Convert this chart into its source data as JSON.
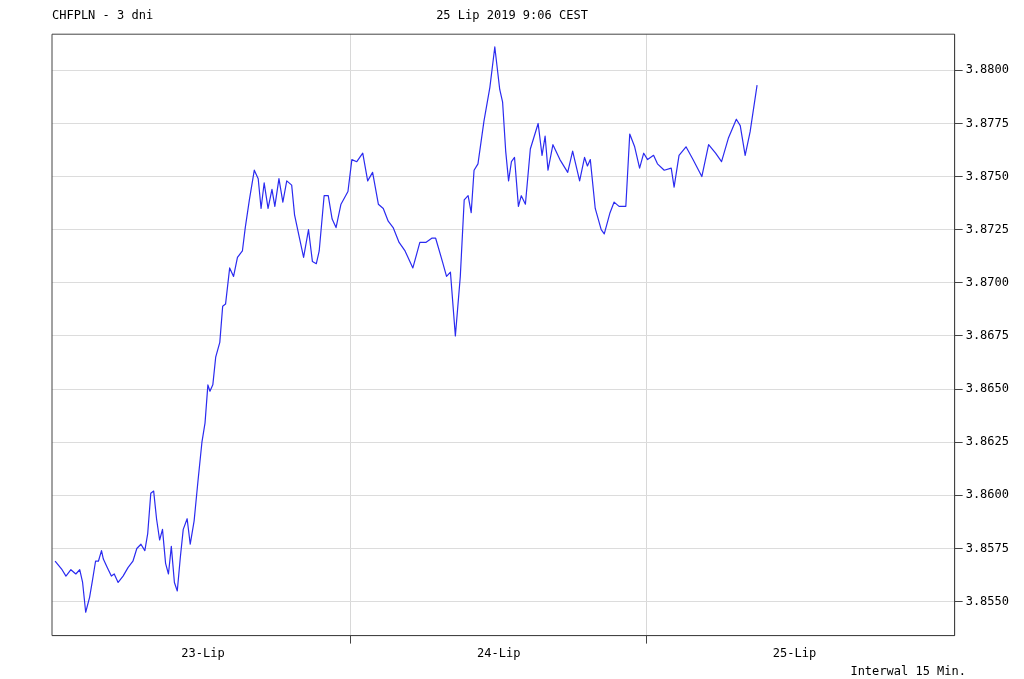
{
  "chart_data": {
    "type": "line",
    "title": "CHFPLN - 3 dni",
    "subtitle": "25 Lip 2019 9:06 CEST",
    "annotations": [
      "Interwal 15 Min."
    ],
    "x": [
      "2019-07-23T00:00",
      "2019-07-23T00:34",
      "2019-07-23T00:53",
      "2019-07-23T01:17",
      "2019-07-23T01:41",
      "2019-07-23T02:00",
      "2019-07-23T02:14",
      "2019-07-23T02:29",
      "2019-07-23T02:48",
      "2019-07-23T03:02",
      "2019-07-23T03:17",
      "2019-07-23T03:31",
      "2019-07-23T03:46",
      "2019-07-23T03:55",
      "2019-07-23T04:14",
      "2019-07-23T04:34",
      "2019-07-23T04:48",
      "2019-07-23T05:07",
      "2019-07-23T05:31",
      "2019-07-23T05:55",
      "2019-07-23T06:19",
      "2019-07-23T06:38",
      "2019-07-23T06:58",
      "2019-07-23T07:17",
      "2019-07-23T07:31",
      "2019-07-23T07:46",
      "2019-07-23T08:00",
      "2019-07-23T08:14",
      "2019-07-23T08:29",
      "2019-07-23T08:43",
      "2019-07-23T08:58",
      "2019-07-23T09:12",
      "2019-07-23T09:26",
      "2019-07-23T09:41",
      "2019-07-23T09:55",
      "2019-07-23T10:10",
      "2019-07-23T10:24",
      "2019-07-23T10:43",
      "2019-07-23T10:58",
      "2019-07-23T11:17",
      "2019-07-23T11:36",
      "2019-07-23T11:55",
      "2019-07-23T12:10",
      "2019-07-23T12:24",
      "2019-07-23T12:34",
      "2019-07-23T12:48",
      "2019-07-23T13:02",
      "2019-07-23T13:22",
      "2019-07-23T13:36",
      "2019-07-23T13:50",
      "2019-07-23T14:10",
      "2019-07-23T14:29",
      "2019-07-23T14:48",
      "2019-07-23T15:12",
      "2019-07-23T15:26",
      "2019-07-23T15:46",
      "2019-07-23T16:10",
      "2019-07-23T16:29",
      "2019-07-23T16:43",
      "2019-07-23T16:58",
      "2019-07-23T17:17",
      "2019-07-23T17:36",
      "2019-07-23T17:50",
      "2019-07-23T18:10",
      "2019-07-23T18:29",
      "2019-07-23T18:48",
      "2019-07-23T19:12",
      "2019-07-23T19:26",
      "2019-07-23T19:50",
      "2019-07-23T20:10",
      "2019-07-23T20:34",
      "2019-07-23T20:53",
      "2019-07-23T21:12",
      "2019-07-23T21:26",
      "2019-07-23T21:50",
      "2019-07-23T22:10",
      "2019-07-23T22:29",
      "2019-07-23T22:48",
      "2019-07-23T23:12",
      "2019-07-23T23:46",
      "2019-07-24T00:05",
      "2019-07-24T00:29",
      "2019-07-24T00:58",
      "2019-07-24T01:22",
      "2019-07-24T01:46",
      "2019-07-24T02:14",
      "2019-07-24T02:38",
      "2019-07-24T03:02",
      "2019-07-24T03:26",
      "2019-07-24T03:55",
      "2019-07-24T04:24",
      "2019-07-24T05:02",
      "2019-07-24T05:36",
      "2019-07-24T06:05",
      "2019-07-24T06:34",
      "2019-07-24T06:53",
      "2019-07-24T07:26",
      "2019-07-24T07:46",
      "2019-07-24T08:05",
      "2019-07-24T08:29",
      "2019-07-24T08:53",
      "2019-07-24T09:12",
      "2019-07-24T09:31",
      "2019-07-24T09:46",
      "2019-07-24T10:00",
      "2019-07-24T10:19",
      "2019-07-24T10:48",
      "2019-07-24T11:17",
      "2019-07-24T11:41",
      "2019-07-24T12:05",
      "2019-07-24T12:19",
      "2019-07-24T12:34",
      "2019-07-24T12:48",
      "2019-07-24T13:02",
      "2019-07-24T13:17",
      "2019-07-24T13:36",
      "2019-07-24T13:50",
      "2019-07-24T14:10",
      "2019-07-24T14:34",
      "2019-07-24T15:12",
      "2019-07-24T15:31",
      "2019-07-24T15:46",
      "2019-07-24T16:00",
      "2019-07-24T16:24",
      "2019-07-24T16:58",
      "2019-07-24T17:36",
      "2019-07-24T18:00",
      "2019-07-24T18:34",
      "2019-07-24T18:58",
      "2019-07-24T19:12",
      "2019-07-24T19:26",
      "2019-07-24T19:50",
      "2019-07-24T20:19",
      "2019-07-24T20:34",
      "2019-07-24T21:02",
      "2019-07-24T21:22",
      "2019-07-24T21:46",
      "2019-07-24T22:19",
      "2019-07-24T22:38",
      "2019-07-24T23:02",
      "2019-07-24T23:26",
      "2019-07-24T23:46",
      "2019-07-25T00:05",
      "2019-07-25T00:34",
      "2019-07-25T00:53",
      "2019-07-25T01:26",
      "2019-07-25T02:00",
      "2019-07-25T02:14",
      "2019-07-25T02:38",
      "2019-07-25T03:12",
      "2019-07-25T03:46",
      "2019-07-25T04:29",
      "2019-07-25T05:02",
      "2019-07-25T05:36",
      "2019-07-25T06:05",
      "2019-07-25T06:38",
      "2019-07-25T07:17",
      "2019-07-25T07:36",
      "2019-07-25T08:00",
      "2019-07-25T08:24",
      "2019-07-25T08:58"
    ],
    "series": [
      {
        "color": "#2b2bf0",
        "values": [
          3.8569,
          3.8565,
          3.8562,
          3.8565,
          3.8563,
          3.8565,
          3.8559,
          3.8545,
          3.8552,
          3.856,
          3.8569,
          3.8569,
          3.8574,
          3.857,
          3.8566,
          3.8562,
          3.8563,
          3.8559,
          3.8562,
          3.8566,
          3.8569,
          3.8575,
          3.8577,
          3.8574,
          3.8582,
          3.8601,
          3.8602,
          3.8589,
          3.8579,
          3.8584,
          3.8568,
          3.8563,
          3.8576,
          3.8559,
          3.8555,
          3.8571,
          3.8584,
          3.8589,
          3.8577,
          3.8588,
          3.8607,
          3.8625,
          3.8634,
          3.8652,
          3.8649,
          3.8652,
          3.8665,
          3.8672,
          3.8689,
          3.869,
          3.8707,
          3.8703,
          3.8712,
          3.8715,
          3.8726,
          3.8739,
          3.8753,
          3.8749,
          3.8735,
          3.8747,
          3.8735,
          3.8744,
          3.8736,
          3.8749,
          3.8738,
          3.8748,
          3.8746,
          3.8732,
          3.8721,
          3.8712,
          3.8725,
          3.871,
          3.8709,
          3.8715,
          3.8741,
          3.8741,
          3.873,
          3.8726,
          3.8737,
          3.8743,
          3.8758,
          3.8757,
          3.8761,
          3.8748,
          3.8752,
          3.8737,
          3.8735,
          3.8729,
          3.8726,
          3.8719,
          3.8715,
          3.8707,
          3.8719,
          3.8719,
          3.8721,
          3.8721,
          3.871,
          3.8703,
          3.8705,
          3.8675,
          3.8703,
          3.8739,
          3.8741,
          3.8733,
          3.8753,
          3.8756,
          3.8776,
          3.8792,
          3.8811,
          3.8791,
          3.8785,
          3.8762,
          3.8748,
          3.8757,
          3.8759,
          3.8736,
          3.8741,
          3.8737,
          3.8763,
          3.8775,
          3.876,
          3.8769,
          3.8753,
          3.8765,
          3.8758,
          3.8752,
          3.8762,
          3.8748,
          3.8759,
          3.8755,
          3.8758,
          3.8735,
          3.8725,
          3.8723,
          3.8733,
          3.8738,
          3.8736,
          3.8736,
          3.877,
          3.8764,
          3.8754,
          3.8761,
          3.8758,
          3.876,
          3.8756,
          3.8753,
          3.8754,
          3.8745,
          3.876,
          3.8764,
          3.8758,
          3.875,
          3.8765,
          3.8761,
          3.8757,
          3.8768,
          3.8777,
          3.8774,
          3.876,
          3.8771,
          3.8793
        ]
      }
    ],
    "xlim": [
      "2019-07-22T23:45",
      "2019-07-26T01:00"
    ],
    "xticks": [
      {
        "value": "2019-07-23T12:00",
        "label": "23-Lip"
      },
      {
        "value": "2019-07-24T00:00",
        "label": null
      },
      {
        "value": "2019-07-24T12:00",
        "label": "24-Lip"
      },
      {
        "value": "2019-07-25T00:00",
        "label": null
      },
      {
        "value": "2019-07-25T12:00",
        "label": "25-Lip"
      }
    ],
    "ylim": [
      3.8534,
      3.8817
    ],
    "yticks": [
      {
        "value": 3.855,
        "label": "3.8550"
      },
      {
        "value": 3.8575,
        "label": "3.8575"
      },
      {
        "value": 3.86,
        "label": "3.8600"
      },
      {
        "value": 3.8625,
        "label": "3.8625"
      },
      {
        "value": 3.865,
        "label": "3.8650"
      },
      {
        "value": 3.8675,
        "label": "3.8675"
      },
      {
        "value": 3.87,
        "label": "3.8700"
      },
      {
        "value": 3.8725,
        "label": "3.8725"
      },
      {
        "value": 3.875,
        "label": "3.8750"
      },
      {
        "value": 3.8775,
        "label": "3.8775"
      },
      {
        "value": 3.88,
        "label": "3.8800"
      }
    ],
    "grid": true,
    "legend": false,
    "marker": "none",
    "line_style": "solid"
  }
}
